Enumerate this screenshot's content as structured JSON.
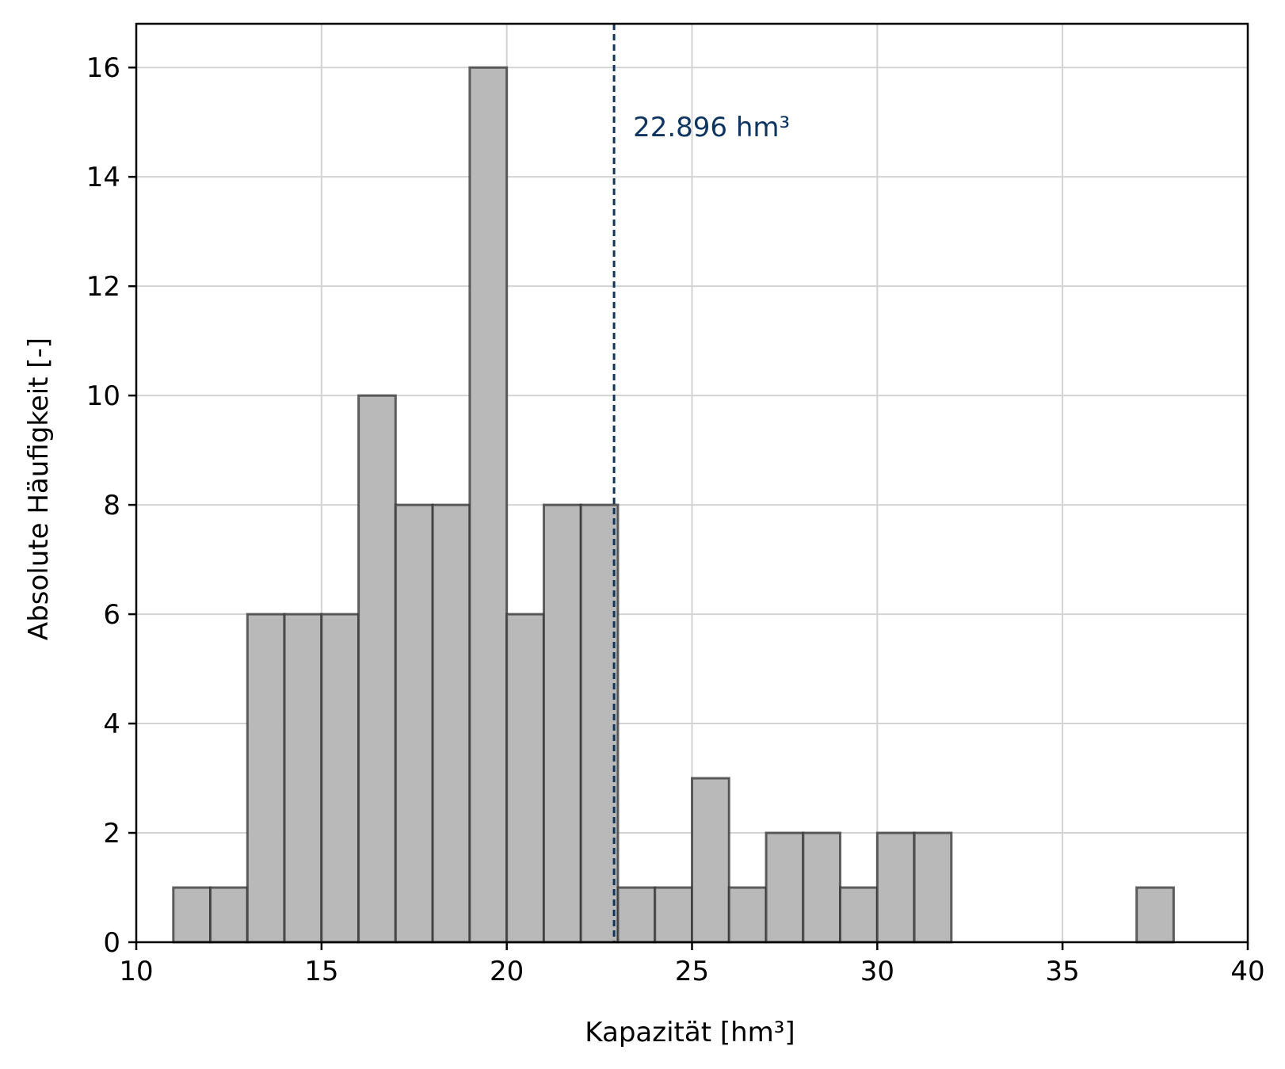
{
  "chart_data": {
    "type": "bar",
    "subtype": "histogram",
    "title": "",
    "xlabel": "Kapazität [hm³]",
    "ylabel": "Absolute Häufigkeit [-]",
    "xlim": [
      10,
      40
    ],
    "ylim": [
      0,
      16.8
    ],
    "xticks": [
      10,
      15,
      20,
      25,
      30,
      35,
      40
    ],
    "yticks": [
      0,
      2,
      4,
      6,
      8,
      10,
      12,
      14,
      16
    ],
    "grid": true,
    "bins": [
      {
        "x0": 11,
        "x1": 12,
        "count": 1
      },
      {
        "x0": 12,
        "x1": 13,
        "count": 1
      },
      {
        "x0": 13,
        "x1": 14,
        "count": 6
      },
      {
        "x0": 14,
        "x1": 15,
        "count": 6
      },
      {
        "x0": 15,
        "x1": 16,
        "count": 6
      },
      {
        "x0": 16,
        "x1": 17,
        "count": 10
      },
      {
        "x0": 17,
        "x1": 18,
        "count": 8
      },
      {
        "x0": 18,
        "x1": 19,
        "count": 8
      },
      {
        "x0": 19,
        "x1": 20,
        "count": 16
      },
      {
        "x0": 20,
        "x1": 21,
        "count": 6
      },
      {
        "x0": 21,
        "x1": 22,
        "count": 8
      },
      {
        "x0": 22,
        "x1": 23,
        "count": 8
      },
      {
        "x0": 23,
        "x1": 24,
        "count": 1
      },
      {
        "x0": 24,
        "x1": 25,
        "count": 1
      },
      {
        "x0": 25,
        "x1": 26,
        "count": 3
      },
      {
        "x0": 26,
        "x1": 27,
        "count": 1
      },
      {
        "x0": 27,
        "x1": 28,
        "count": 2
      },
      {
        "x0": 28,
        "x1": 29,
        "count": 2
      },
      {
        "x0": 29,
        "x1": 30,
        "count": 1
      },
      {
        "x0": 30,
        "x1": 31,
        "count": 2
      },
      {
        "x0": 31,
        "x1": 32,
        "count": 2
      },
      {
        "x0": 32,
        "x1": 33,
        "count": 0
      },
      {
        "x0": 33,
        "x1": 34,
        "count": 0
      },
      {
        "x0": 34,
        "x1": 35,
        "count": 0
      },
      {
        "x0": 35,
        "x1": 36,
        "count": 0
      },
      {
        "x0": 36,
        "x1": 37,
        "count": 0
      },
      {
        "x0": 37,
        "x1": 38,
        "count": 1
      },
      {
        "x0": 38,
        "x1": 39,
        "count": 0
      }
    ],
    "reference_line": {
      "x": 22.896,
      "label": "22.896 hm³",
      "style": "dashed",
      "color": "#0d3560"
    },
    "colors": {
      "bar_fill": "#b8b9b8",
      "bar_edge": "#333333",
      "grid": "#d3d3d3",
      "axis": "#000000"
    }
  }
}
